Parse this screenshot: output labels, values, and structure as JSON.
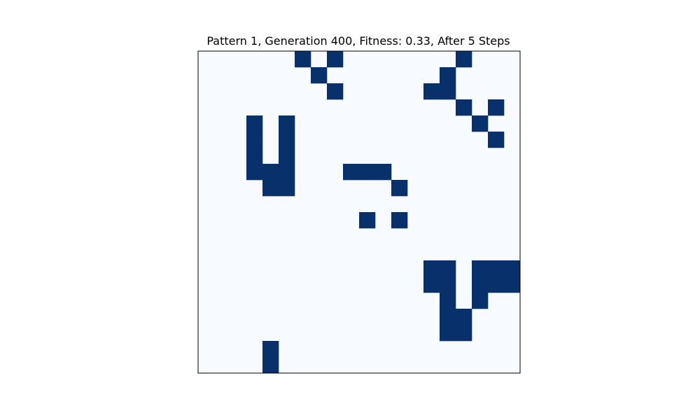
{
  "chart_data": {
    "type": "heatmap",
    "title": "Pattern 1, Generation 400, Fitness: 0.33, After 5 Steps",
    "xlabel": "",
    "ylabel": "",
    "grid": false,
    "axes_ticks": false,
    "colormap": "Blues",
    "colors": {
      "alive": "#08306b",
      "dead": "#f7fbff",
      "frame": "#000000"
    },
    "rows": 20,
    "cols": 20,
    "cells": [
      [
        0,
        0,
        0,
        0,
        0,
        0,
        1,
        0,
        1,
        0,
        0,
        0,
        0,
        0,
        0,
        0,
        1,
        0,
        0,
        0
      ],
      [
        0,
        0,
        0,
        0,
        0,
        0,
        0,
        1,
        0,
        0,
        0,
        0,
        0,
        0,
        0,
        1,
        0,
        0,
        0,
        0
      ],
      [
        0,
        0,
        0,
        0,
        0,
        0,
        0,
        0,
        1,
        0,
        0,
        0,
        0,
        0,
        1,
        1,
        0,
        0,
        0,
        0
      ],
      [
        0,
        0,
        0,
        0,
        0,
        0,
        0,
        0,
        0,
        0,
        0,
        0,
        0,
        0,
        0,
        0,
        1,
        0,
        1,
        0
      ],
      [
        0,
        0,
        0,
        1,
        0,
        1,
        0,
        0,
        0,
        0,
        0,
        0,
        0,
        0,
        0,
        0,
        0,
        1,
        0,
        0
      ],
      [
        0,
        0,
        0,
        1,
        0,
        1,
        0,
        0,
        0,
        0,
        0,
        0,
        0,
        0,
        0,
        0,
        0,
        0,
        1,
        0
      ],
      [
        0,
        0,
        0,
        1,
        0,
        1,
        0,
        0,
        0,
        0,
        0,
        0,
        0,
        0,
        0,
        0,
        0,
        0,
        0,
        0
      ],
      [
        0,
        0,
        0,
        1,
        1,
        1,
        0,
        0,
        0,
        1,
        1,
        1,
        0,
        0,
        0,
        0,
        0,
        0,
        0,
        0
      ],
      [
        0,
        0,
        0,
        0,
        1,
        1,
        0,
        0,
        0,
        0,
        0,
        0,
        1,
        0,
        0,
        0,
        0,
        0,
        0,
        0
      ],
      [
        0,
        0,
        0,
        0,
        0,
        0,
        0,
        0,
        0,
        0,
        0,
        0,
        0,
        0,
        0,
        0,
        0,
        0,
        0,
        0
      ],
      [
        0,
        0,
        0,
        0,
        0,
        0,
        0,
        0,
        0,
        0,
        1,
        0,
        1,
        0,
        0,
        0,
        0,
        0,
        0,
        0
      ],
      [
        0,
        0,
        0,
        0,
        0,
        0,
        0,
        0,
        0,
        0,
        0,
        0,
        0,
        0,
        0,
        0,
        0,
        0,
        0,
        0
      ],
      [
        0,
        0,
        0,
        0,
        0,
        0,
        0,
        0,
        0,
        0,
        0,
        0,
        0,
        0,
        0,
        0,
        0,
        0,
        0,
        0
      ],
      [
        0,
        0,
        0,
        0,
        0,
        0,
        0,
        0,
        0,
        0,
        0,
        0,
        0,
        0,
        1,
        1,
        0,
        1,
        1,
        1
      ],
      [
        0,
        0,
        0,
        0,
        0,
        0,
        0,
        0,
        0,
        0,
        0,
        0,
        0,
        0,
        1,
        1,
        0,
        1,
        1,
        1
      ],
      [
        0,
        0,
        0,
        0,
        0,
        0,
        0,
        0,
        0,
        0,
        0,
        0,
        0,
        0,
        0,
        1,
        0,
        1,
        0,
        0
      ],
      [
        0,
        0,
        0,
        0,
        0,
        0,
        0,
        0,
        0,
        0,
        0,
        0,
        0,
        0,
        0,
        1,
        1,
        0,
        0,
        0
      ],
      [
        0,
        0,
        0,
        0,
        0,
        0,
        0,
        0,
        0,
        0,
        0,
        0,
        0,
        0,
        0,
        1,
        1,
        0,
        0,
        0
      ],
      [
        0,
        0,
        0,
        0,
        1,
        0,
        0,
        0,
        0,
        0,
        0,
        0,
        0,
        0,
        0,
        0,
        0,
        0,
        0,
        0
      ],
      [
        0,
        0,
        0,
        0,
        1,
        0,
        0,
        0,
        0,
        0,
        0,
        0,
        0,
        0,
        0,
        0,
        0,
        0,
        0,
        0
      ]
    ]
  }
}
